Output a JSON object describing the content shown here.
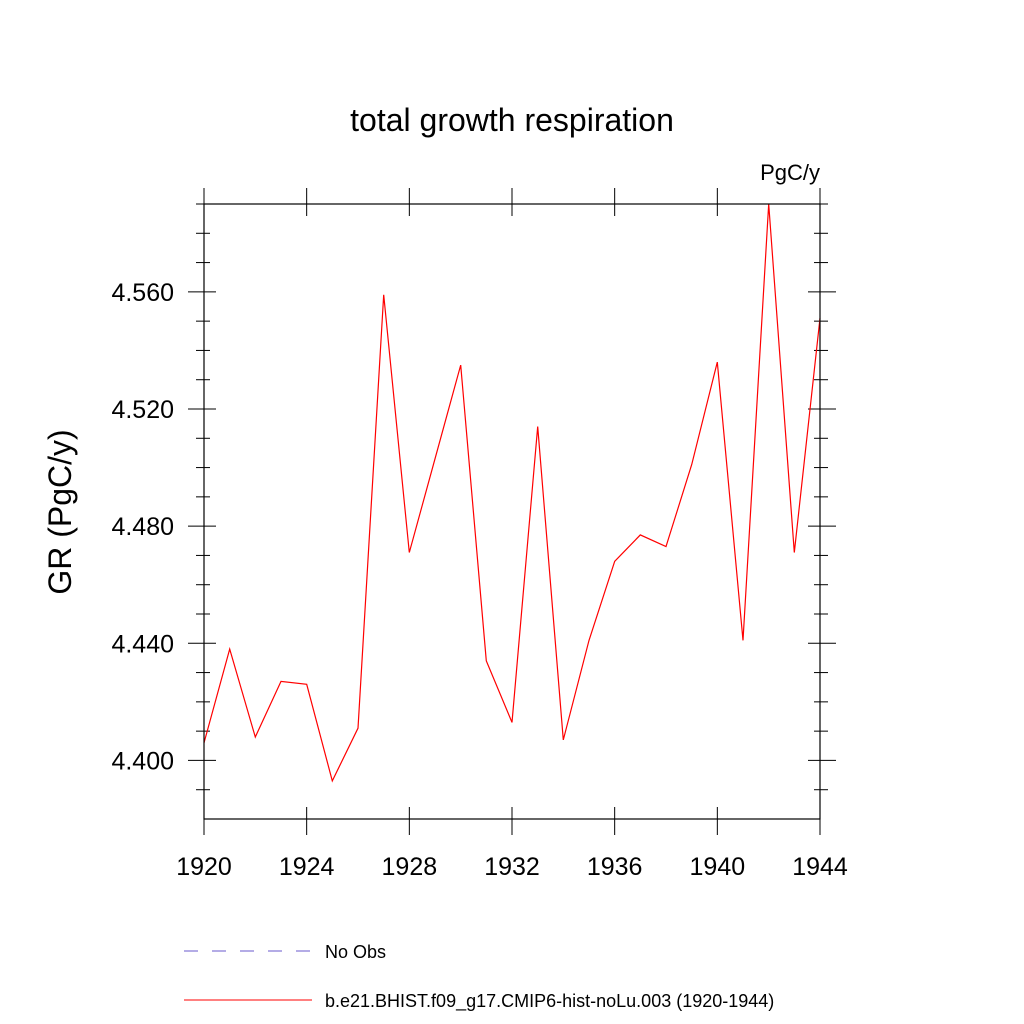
{
  "chart_data": {
    "type": "line",
    "title": "total growth respiration",
    "units": "PgC/y",
    "xlabel": "",
    "ylabel": "GR  (PgC/y)",
    "xlim": [
      1920,
      1944
    ],
    "ylim": [
      4.38,
      4.59
    ],
    "xticks": [
      {
        "value": 1920,
        "label": "1920"
      },
      {
        "value": 1924,
        "label": "1924"
      },
      {
        "value": 1928,
        "label": "1928"
      },
      {
        "value": 1932,
        "label": "1932"
      },
      {
        "value": 1936,
        "label": "1936"
      },
      {
        "value": 1940,
        "label": "1940"
      },
      {
        "value": 1944,
        "label": "1944"
      }
    ],
    "yticks": [
      {
        "value": 4.4,
        "label": "4.400"
      },
      {
        "value": 4.44,
        "label": "4.440"
      },
      {
        "value": 4.48,
        "label": "4.480"
      },
      {
        "value": 4.52,
        "label": "4.520"
      },
      {
        "value": 4.56,
        "label": "4.560"
      }
    ],
    "grid": false,
    "legend_position": "bottom",
    "series": [
      {
        "name": "b.e21.BHIST.f09_g17.CMIP6-hist-noLu.003 (1920-1944)",
        "color": "#ff0000",
        "style": "solid",
        "x": [
          1920,
          1921,
          1922,
          1923,
          1924,
          1925,
          1926,
          1927,
          1928,
          1929,
          1930,
          1931,
          1932,
          1933,
          1934,
          1935,
          1936,
          1937,
          1938,
          1939,
          1940,
          1941,
          1942,
          1943,
          1944
        ],
        "values": [
          4.406,
          4.438,
          4.408,
          4.427,
          4.426,
          4.393,
          4.411,
          4.559,
          4.471,
          4.503,
          4.535,
          4.434,
          4.413,
          4.514,
          4.407,
          4.441,
          4.468,
          4.477,
          4.473,
          4.501,
          4.536,
          4.441,
          4.59,
          4.471,
          4.551
        ]
      }
    ],
    "legend": [
      {
        "label": "No Obs",
        "color": "#6a5acd",
        "style": "dashed"
      },
      {
        "label": "b.e21.BHIST.f09_g17.CMIP6-hist-noLu.003 (1920-1944)",
        "color": "#ff0000",
        "style": "solid"
      }
    ]
  }
}
